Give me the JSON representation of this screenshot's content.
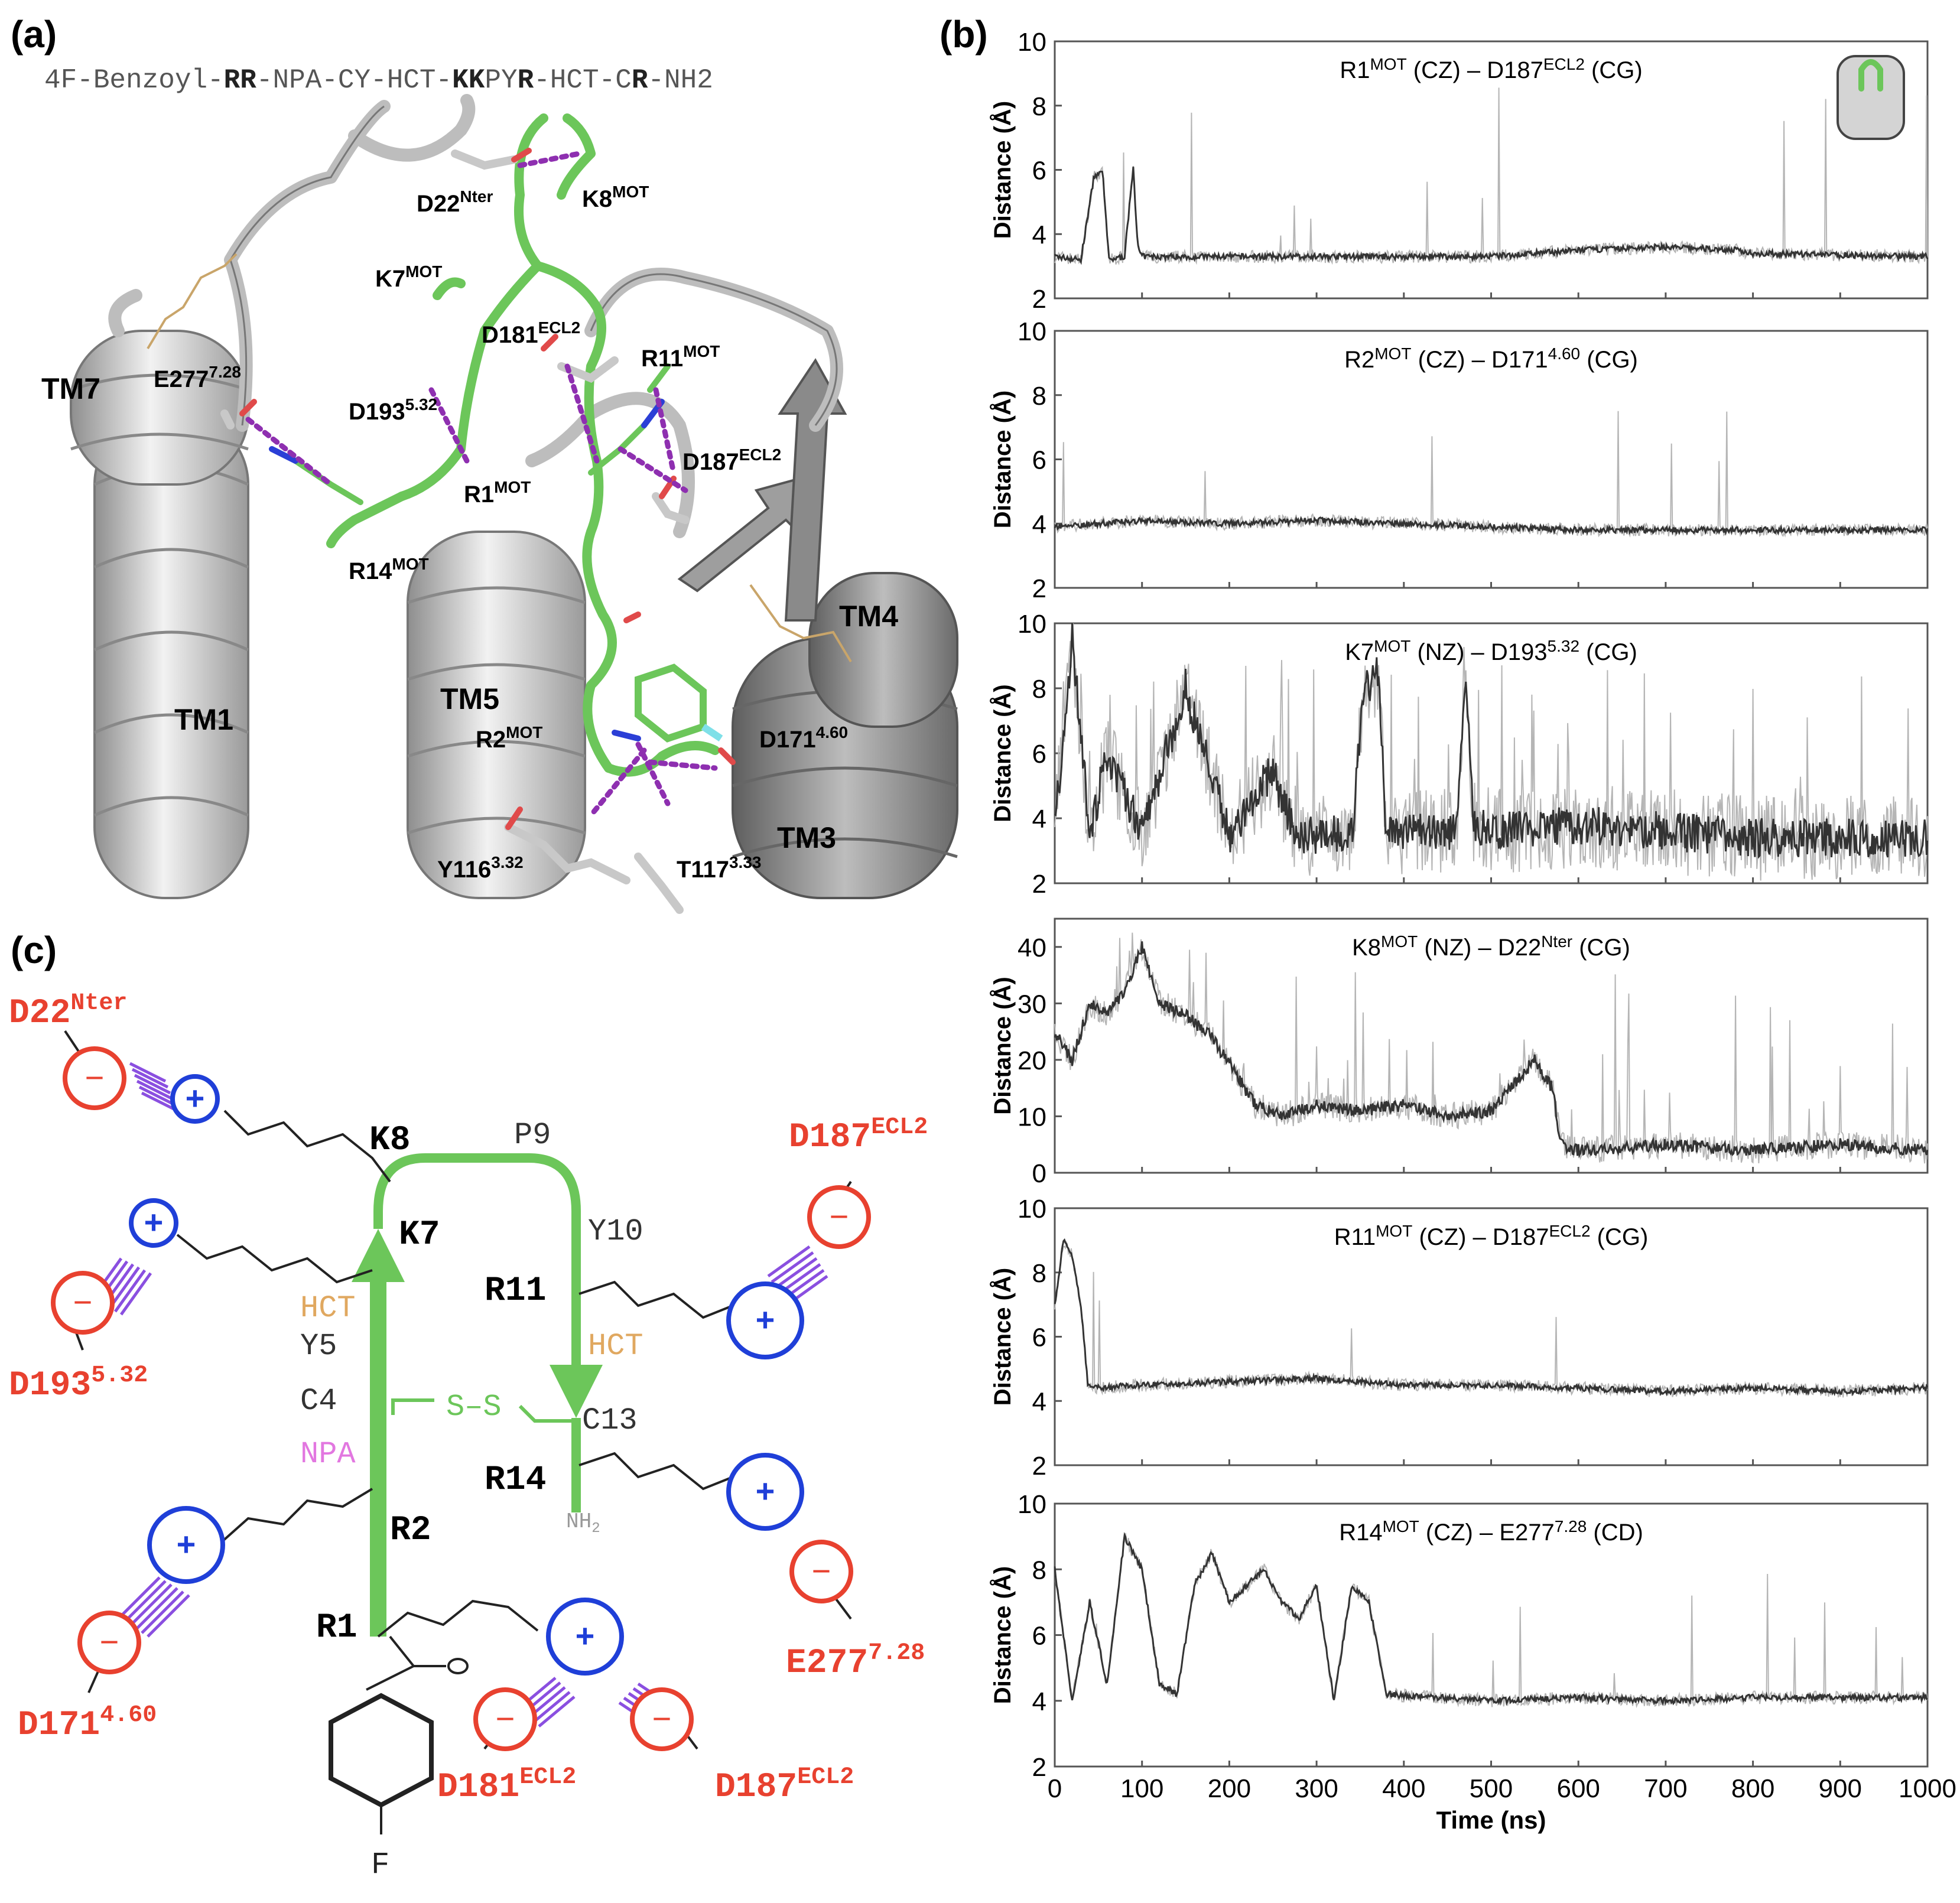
{
  "colors": {
    "peptide_green": "#6cc65a",
    "negative_red": "#e8412f",
    "positive_blue": "#1f3fd8",
    "stripe_purple": "#8a4fe0",
    "hct_orange": "#e0a860",
    "npa_pink": "#e277e0",
    "trace": "#3a3a3a"
  },
  "panel_a": {
    "label": "(a)",
    "sequence": [
      "4F-Benzoyl-",
      "RR",
      "-NPA-CY-HCT-",
      "KK",
      "PY",
      "R",
      "-HCT-C",
      "R",
      "-NH2"
    ],
    "labels": {
      "d22": "D22",
      "d22_sup": "Nter",
      "k8": "K8",
      "k8_sup": "MOT",
      "k7": "K7",
      "k7_sup": "MOT",
      "d181": "D181",
      "d181_sup": "ECL2",
      "r11": "R11",
      "r11_sup": "MOT",
      "e277": "E277",
      "e277_sup": "7.28",
      "d193": "D193",
      "d193_sup": "5.32",
      "d187": "D187",
      "d187_sup": "ECL2",
      "r1": "R1",
      "r1_sup": "MOT",
      "r14": "R14",
      "r14_sup": "MOT",
      "tm7": "TM7",
      "tm4": "TM4",
      "tm1": "TM1",
      "tm5": "TM5",
      "tm3": "TM3",
      "r2": "R2",
      "r2_sup": "MOT",
      "d171": "D171",
      "d171_sup": "4.60",
      "y116": "Y116",
      "y116_sup": "3.32",
      "t117": "T117",
      "t117_sup": "3.33"
    }
  },
  "panel_b": {
    "label": "(b)",
    "xlabel": "Time (ns)",
    "ylabel": "Distance (Å)"
  },
  "chart_data": [
    {
      "type": "line",
      "title": "R1MOT (CZ) – D187ECL2 (CG)",
      "t1": "R1",
      "s1": "MOT",
      "t2": " (CZ)  – D187",
      "s2": "ECL2",
      "t3": " (CG)",
      "ylabel": "Distance (Å)",
      "xlim": [
        0,
        1000
      ],
      "ylim": [
        2,
        10
      ],
      "yticks": [
        2,
        4,
        6,
        8,
        10
      ],
      "x": [
        0,
        30,
        45,
        55,
        62,
        80,
        90,
        95,
        100,
        150,
        300,
        500,
        600,
        700,
        780,
        800,
        1000
      ],
      "y": [
        3.3,
        3.2,
        5.8,
        5.9,
        3.2,
        3.3,
        6.1,
        3.6,
        3.3,
        3.3,
        3.3,
        3.3,
        3.5,
        3.6,
        3.5,
        3.4,
        3.3
      ]
    },
    {
      "type": "line",
      "title": "R2MOT (CZ) – D1714.60 (CG)",
      "t1": "R2",
      "s1": "MOT",
      "t2": " (CZ) – D171",
      "s2": "4.60",
      "t3": " (CG)",
      "ylabel": "Distance (Å)",
      "xlim": [
        0,
        1000
      ],
      "ylim": [
        2,
        10
      ],
      "yticks": [
        2,
        4,
        6,
        8,
        10
      ],
      "x": [
        0,
        100,
        200,
        300,
        400,
        500,
        600,
        700,
        800,
        900,
        1000
      ],
      "y": [
        3.9,
        4.1,
        4.0,
        4.1,
        4.0,
        3.9,
        3.8,
        3.8,
        3.8,
        3.8,
        3.8
      ]
    },
    {
      "type": "line",
      "title": "K7MOT (NZ) – D1935.32 (CG)",
      "t1": "K7",
      "s1": "MOT",
      "t2": " (NZ) – D193",
      "s2": "5.32",
      "t3": " (CG)",
      "ylabel": "Distance (Å)",
      "xlim": [
        0,
        1000
      ],
      "ylim": [
        2,
        10
      ],
      "yticks": [
        2,
        4,
        6,
        8,
        10
      ],
      "x": [
        0,
        20,
        40,
        60,
        100,
        150,
        200,
        250,
        260,
        280,
        300,
        340,
        355,
        370,
        380,
        460,
        470,
        480,
        500,
        600,
        700,
        800,
        900,
        1000
      ],
      "y": [
        3.6,
        9.5,
        3.5,
        6.0,
        3.5,
        8.0,
        3.5,
        5.5,
        4.5,
        3.5,
        3.5,
        3.5,
        8.0,
        8.5,
        3.6,
        3.6,
        8.5,
        3.8,
        3.6,
        3.8,
        3.6,
        3.4,
        3.4,
        3.4
      ]
    },
    {
      "type": "line",
      "title": "K8MOT (NZ) – D22Nter (CG)",
      "t1": "K8",
      "s1": "MOT",
      "t2": " (NZ) – D22",
      "s2": "Nter",
      "t3": " (CG)",
      "ylabel": "Distance (Å)",
      "xlim": [
        0,
        1000
      ],
      "ylim": [
        0,
        45
      ],
      "yticks": [
        0,
        10,
        20,
        30,
        40
      ],
      "x": [
        0,
        20,
        40,
        60,
        80,
        100,
        120,
        150,
        180,
        230,
        260,
        300,
        350,
        400,
        450,
        500,
        550,
        570,
        580,
        600,
        700,
        800,
        900,
        1000
      ],
      "y": [
        25,
        20,
        30,
        28,
        32,
        40,
        30,
        28,
        24,
        12,
        10,
        12,
        11,
        12,
        10,
        11,
        20,
        15,
        5,
        4,
        5,
        4,
        5,
        4
      ]
    },
    {
      "type": "line",
      "title": "R11MOT (CZ) – D187ECL2 (CG)",
      "t1": "R11",
      "s1": "MOT",
      "t2": " (CZ) – D187",
      "s2": "ECL2",
      "t3": " (CG)",
      "ylabel": "Distance (Å)",
      "xlim": [
        0,
        1000
      ],
      "ylim": [
        2,
        10
      ],
      "yticks": [
        2,
        4,
        6,
        8,
        10
      ],
      "x": [
        0,
        10,
        20,
        30,
        38,
        45,
        100,
        200,
        300,
        400,
        500,
        600,
        700,
        800,
        900,
        1000
      ],
      "y": [
        7.0,
        9.0,
        8.5,
        7.0,
        4.5,
        4.4,
        4.5,
        4.6,
        4.7,
        4.5,
        4.5,
        4.4,
        4.3,
        4.4,
        4.3,
        4.4
      ]
    },
    {
      "type": "line",
      "title": "R14MOT (CZ) – E2777.28 (CD)",
      "t1": "R14",
      "s1": "MOT",
      "t2": " (CZ) – E277",
      "s2": "7.28",
      "t3": " (CD)",
      "ylabel": "Distance (Å)",
      "xlim": [
        0,
        1000
      ],
      "ylim": [
        2,
        10
      ],
      "yticks": [
        2,
        4,
        6,
        8,
        10
      ],
      "xticks": [
        0,
        100,
        200,
        300,
        400,
        500,
        600,
        700,
        800,
        900,
        1000
      ],
      "xlabel": "Time (ns)",
      "x": [
        0,
        20,
        40,
        60,
        80,
        100,
        120,
        140,
        160,
        180,
        200,
        220,
        240,
        260,
        280,
        300,
        320,
        340,
        360,
        380,
        500,
        600,
        700,
        800,
        900,
        1000
      ],
      "y": [
        8.0,
        4.0,
        7.0,
        4.5,
        9.0,
        8.0,
        4.5,
        4.2,
        7.5,
        8.5,
        7.0,
        7.5,
        8.0,
        7.0,
        6.5,
        7.5,
        4.0,
        7.5,
        7.0,
        4.2,
        4.0,
        4.1,
        4.0,
        4.1,
        4.1,
        4.1
      ]
    }
  ],
  "panel_c": {
    "label": "(c)",
    "res": {
      "k8": "K8",
      "k7": "K7",
      "r11": "R11",
      "r14": "R14",
      "r2": "R2",
      "r1": "R1",
      "p9": "P9",
      "y10": "Y10",
      "hct1": "HCT",
      "y5": "Y5",
      "c4": "C4",
      "npa": "NPA",
      "ss": "S–S",
      "c13": "C13",
      "hct2": "HCT",
      "nh2": "NH",
      "nh2_sub": "2",
      "f": "F",
      "plus": "+",
      "minus": "−"
    },
    "acid": {
      "d22": "D22",
      "d22_sup": "Nter",
      "d187a": "D187",
      "d187a_sup": "ECL2",
      "d193": "D193",
      "d193_sup": "5.32",
      "e277": "E277",
      "e277_sup": "7.28",
      "d171": "D171",
      "d171_sup": "4.60",
      "d181": "D181",
      "d181_sup": "ECL2",
      "d187b": "D187",
      "d187b_sup": "ECL2"
    }
  }
}
